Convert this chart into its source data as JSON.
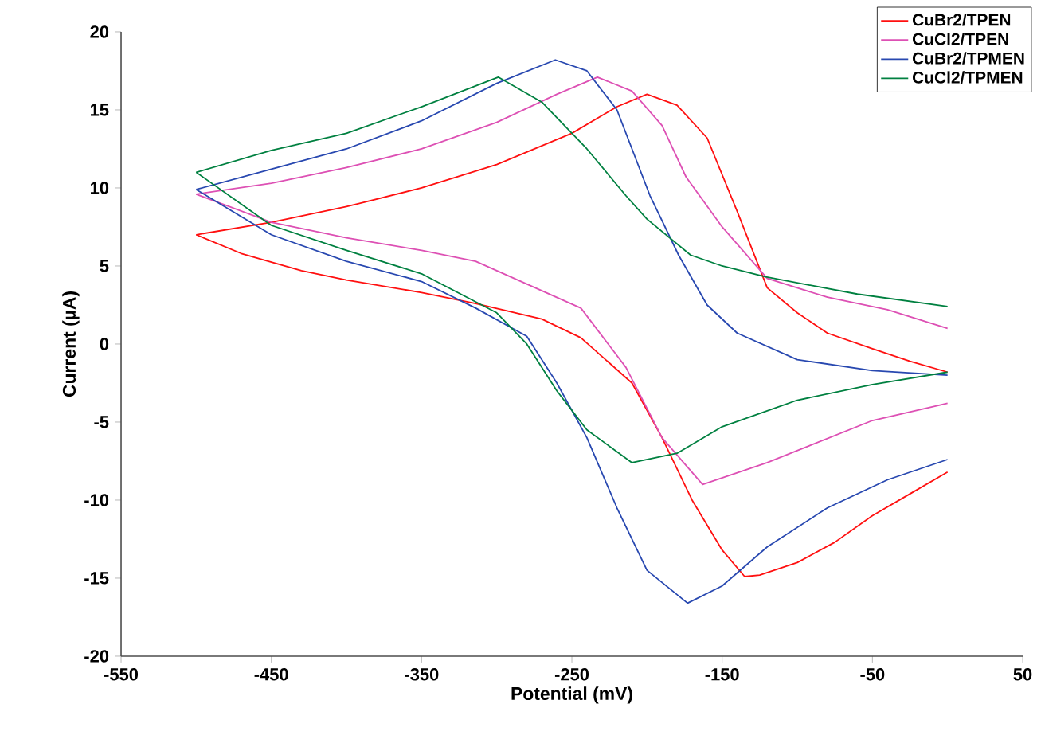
{
  "chart_data": {
    "type": "line",
    "xlabel": "Potential (mV)",
    "ylabel": "Current (µA)",
    "xlim": [
      -550,
      50
    ],
    "xticks": [
      -550,
      -450,
      -350,
      -250,
      -150,
      -50,
      50
    ],
    "ylim": [
      -20,
      20
    ],
    "yticks": [
      -20,
      -15,
      -10,
      -5,
      0,
      5,
      10,
      15,
      20
    ],
    "grid": false,
    "legend": "top right",
    "marker": "none",
    "line_style": "solid",
    "series": [
      {
        "name": "CuBr2/TPEN",
        "color": "#ff1010",
        "x": [
          -500,
          -450,
          -400,
          -350,
          -300,
          -250,
          -220,
          -200,
          -180,
          -160,
          -140,
          -120,
          -100,
          -80,
          -50,
          -25,
          0
        ],
        "values": [
          7.0,
          7.8,
          8.8,
          10,
          11.5,
          13.5,
          15.2,
          16,
          15.3,
          13.2,
          8.5,
          3.6,
          2,
          0.7,
          -0.3,
          -1.1,
          -1.8
        ]
      },
      {
        "name": "CuCl2/TPEN",
        "color": "#dd50b4",
        "x": [
          -500,
          -450,
          -400,
          -350,
          -300,
          -260,
          -233,
          -210,
          -190,
          -174,
          -150,
          -120,
          -80,
          -40,
          0
        ],
        "values": [
          9.6,
          10.3,
          11.3,
          12.5,
          14.2,
          16,
          17.1,
          16.2,
          14,
          10.7,
          7.5,
          4.2,
          3,
          2.2,
          1.0
        ]
      },
      {
        "name": "CuBr2/TPMEN",
        "color": "#2848b0",
        "x": [
          -500,
          -450,
          -400,
          -350,
          -300,
          -261,
          -240,
          -220,
          -198,
          -179,
          -160,
          -140,
          -100,
          -50,
          0
        ],
        "values": [
          9.9,
          11.2,
          12.5,
          14.3,
          16.7,
          18.2,
          17.5,
          15,
          9.5,
          5.7,
          2.5,
          0.7,
          -1,
          -1.7,
          -2
        ]
      },
      {
        "name": "CuCl2/TPMEN",
        "color": "#008040",
        "x": [
          -500,
          -450,
          -400,
          -350,
          -299,
          -270,
          -240,
          -214,
          -200,
          -171,
          -150,
          -121,
          -60,
          0
        ],
        "values": [
          11.0,
          12.4,
          13.5,
          15.2,
          17.1,
          15.5,
          12.5,
          9.5,
          8,
          5.7,
          5.0,
          4.3,
          3.2,
          2.4
        ]
      },
      {
        "color": "#ff1010",
        "x": [
          -500,
          -470,
          -430,
          -400,
          -350,
          -314,
          -270,
          -244,
          -210,
          -190,
          -170,
          -150,
          -135,
          -125,
          -100,
          -75,
          -50,
          -25,
          0
        ],
        "values": [
          7.0,
          5.8,
          4.7,
          4.1,
          3.3,
          2.6,
          1.6,
          0.4,
          -2.5,
          -6,
          -10,
          -13.2,
          -14.9,
          -14.8,
          -14,
          -12.7,
          -11,
          -9.6,
          -8.2
        ]
      },
      {
        "color": "#dd50b4",
        "x": [
          -500,
          -450,
          -400,
          -350,
          -314,
          -244,
          -214,
          -190,
          -163,
          -120,
          -50,
          0
        ],
        "values": [
          9.6,
          7.8,
          6.8,
          6.0,
          5.3,
          2.3,
          -1.5,
          -6,
          -9.0,
          -7.6,
          -4.9,
          -3.8
        ]
      },
      {
        "color": "#2848b0",
        "x": [
          -500,
          -450,
          -400,
          -350,
          -314,
          -280,
          -260,
          -240,
          -220,
          -200,
          -173,
          -150,
          -120,
          -80,
          -40,
          0
        ],
        "values": [
          9.9,
          7,
          5.3,
          4,
          2.3,
          0.5,
          -2.5,
          -6,
          -10.5,
          -14.5,
          -16.6,
          -15.5,
          -13,
          -10.5,
          -8.7,
          -7.4
        ]
      },
      {
        "color": "#008040",
        "x": [
          -500,
          -450,
          -400,
          -350,
          -300,
          -280,
          -260,
          -240,
          -210,
          -180,
          -150,
          -100,
          -50,
          0
        ],
        "values": [
          11.0,
          7.6,
          6,
          4.5,
          2,
          0,
          -3,
          -5.5,
          -7.6,
          -7,
          -5.3,
          -3.6,
          -2.6,
          -1.8
        ]
      }
    ]
  }
}
